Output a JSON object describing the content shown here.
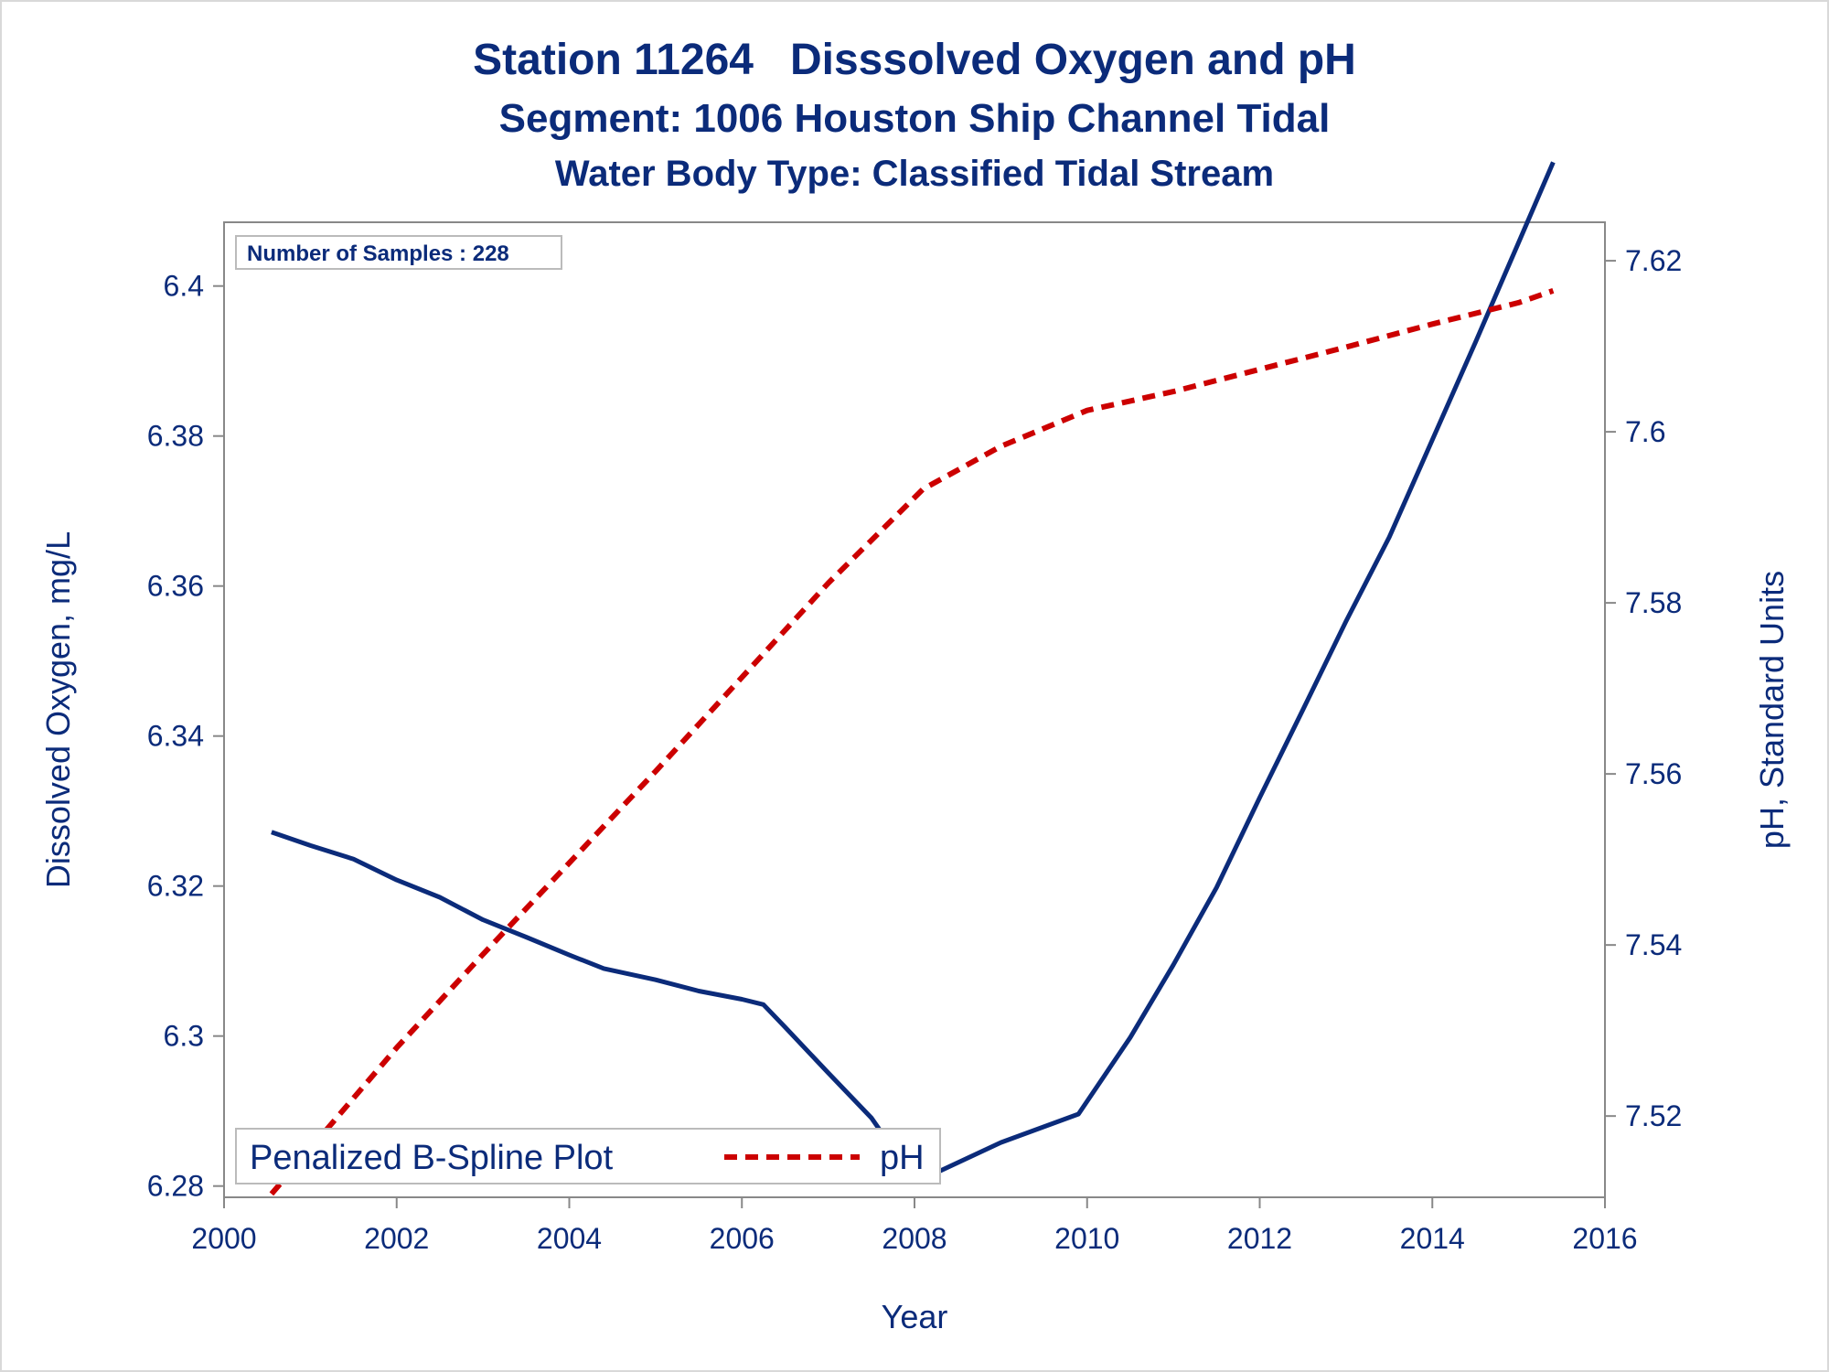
{
  "title": {
    "line1": "Station 11264   Disssolved Oxygen and pH",
    "line2": "Segment: 1006  Houston Ship Channel Tidal",
    "line3": "Water Body Type: Classified Tidal Stream"
  },
  "inset": {
    "label": "Number of Samples : 228"
  },
  "legend": {
    "entries": [
      "Penalized B-Spline Plot",
      "pH"
    ]
  },
  "colors": {
    "do_line": "#0b2b7a",
    "ph_line": "#cc0000",
    "text": "#0b2b7a",
    "axis": "#888888"
  },
  "chart_data": {
    "type": "line",
    "xlabel": "Year",
    "ylabel_left": "Dissolved Oxygen, mg/L",
    "ylabel_right": "pH, Standard Units",
    "xlim": [
      2000,
      2016
    ],
    "ylim_left": [
      6.2785,
      6.4085
    ],
    "ylim_right": [
      7.5105,
      7.6245
    ],
    "x_ticks": [
      "2000",
      "2002",
      "2004",
      "2006",
      "2008",
      "2010",
      "2012",
      "2014",
      "2016"
    ],
    "y_left_ticks": [
      "6.28",
      "6.3",
      "6.32",
      "6.34",
      "6.36",
      "6.38",
      "6.4"
    ],
    "y_right_ticks": [
      "7.52",
      "7.54",
      "7.56",
      "7.58",
      "7.6",
      "7.62"
    ],
    "grid": false,
    "legend_position": "bottom-left",
    "series": [
      {
        "axis": "left",
        "style": "solid",
        "x": [
          2000.55,
          2001.0,
          2001.5,
          2002.0,
          2002.5,
          2003.0,
          2003.5,
          2004.0,
          2004.4,
          2005.0,
          2005.5,
          2006.0,
          2006.25,
          2006.5,
          2007.0,
          2007.5,
          2008.0,
          2008.2,
          2009.0,
          2009.9,
          2010.5,
          2011.0,
          2011.5,
          2012.0,
          2012.5,
          2013.0,
          2013.5,
          2014.0,
          2014.5,
          2015.0,
          2015.4
        ],
        "y": [
          6.3272,
          6.3254,
          6.3236,
          6.3208,
          6.3185,
          6.3155,
          6.3132,
          6.3108,
          6.309,
          6.3075,
          6.306,
          6.3049,
          6.3042,
          6.3012,
          6.2951,
          6.2891,
          6.2808,
          6.2815,
          6.2858,
          6.2896,
          6.2998,
          6.3095,
          6.3198,
          6.3318,
          6.3435,
          6.3553,
          6.3665,
          6.3795,
          6.3925,
          6.4058,
          6.4165
        ]
      },
      {
        "name": "pH",
        "axis": "right",
        "style": "dashed",
        "x": [
          2000.55,
          2002.0,
          2003.0,
          2004.0,
          2005.0,
          2006.0,
          2007.0,
          2008.1,
          2009.0,
          2010.0,
          2011.0,
          2012.0,
          2013.0,
          2014.0,
          2015.0,
          2015.4
        ],
        "y": [
          7.5109,
          7.528,
          7.5389,
          7.5496,
          7.5603,
          7.5713,
          7.5823,
          7.5933,
          7.5983,
          7.6025,
          7.6047,
          7.6073,
          7.6099,
          7.6126,
          7.6151,
          7.6165
        ]
      }
    ]
  }
}
